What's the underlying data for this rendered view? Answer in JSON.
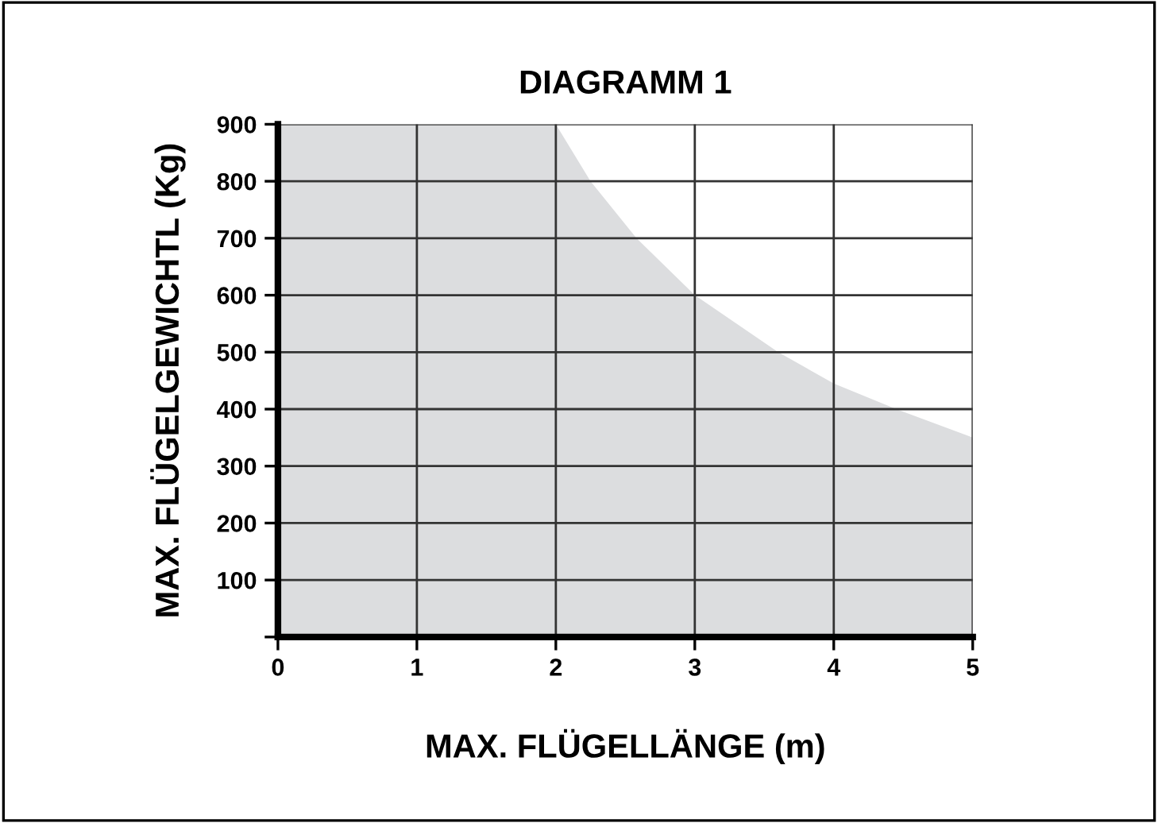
{
  "chart_data": {
    "type": "area",
    "title": "DIAGRAMM 1",
    "xlabel": "MAX. FLÜGELLÄNGE (m)",
    "ylabel": "MAX. FLÜGELGEWICHTL (Kg)",
    "x": [
      0,
      2,
      2.25,
      2.58,
      3,
      3.6,
      4,
      4.45,
      5
    ],
    "series": [
      {
        "color": "#dcdddf",
        "values": [
          900,
          900,
          800,
          700,
          600,
          500,
          445,
          400,
          350
        ]
      }
    ],
    "xlim": [
      0,
      5
    ],
    "ylim": [
      0,
      900
    ],
    "xticks": [
      0,
      1,
      2,
      3,
      4,
      5
    ],
    "yticks": [
      {
        "value": 0,
        "label": null
      },
      100,
      200,
      300,
      400,
      500,
      600,
      700,
      800,
      900
    ],
    "grid": true,
    "legend": false
  }
}
